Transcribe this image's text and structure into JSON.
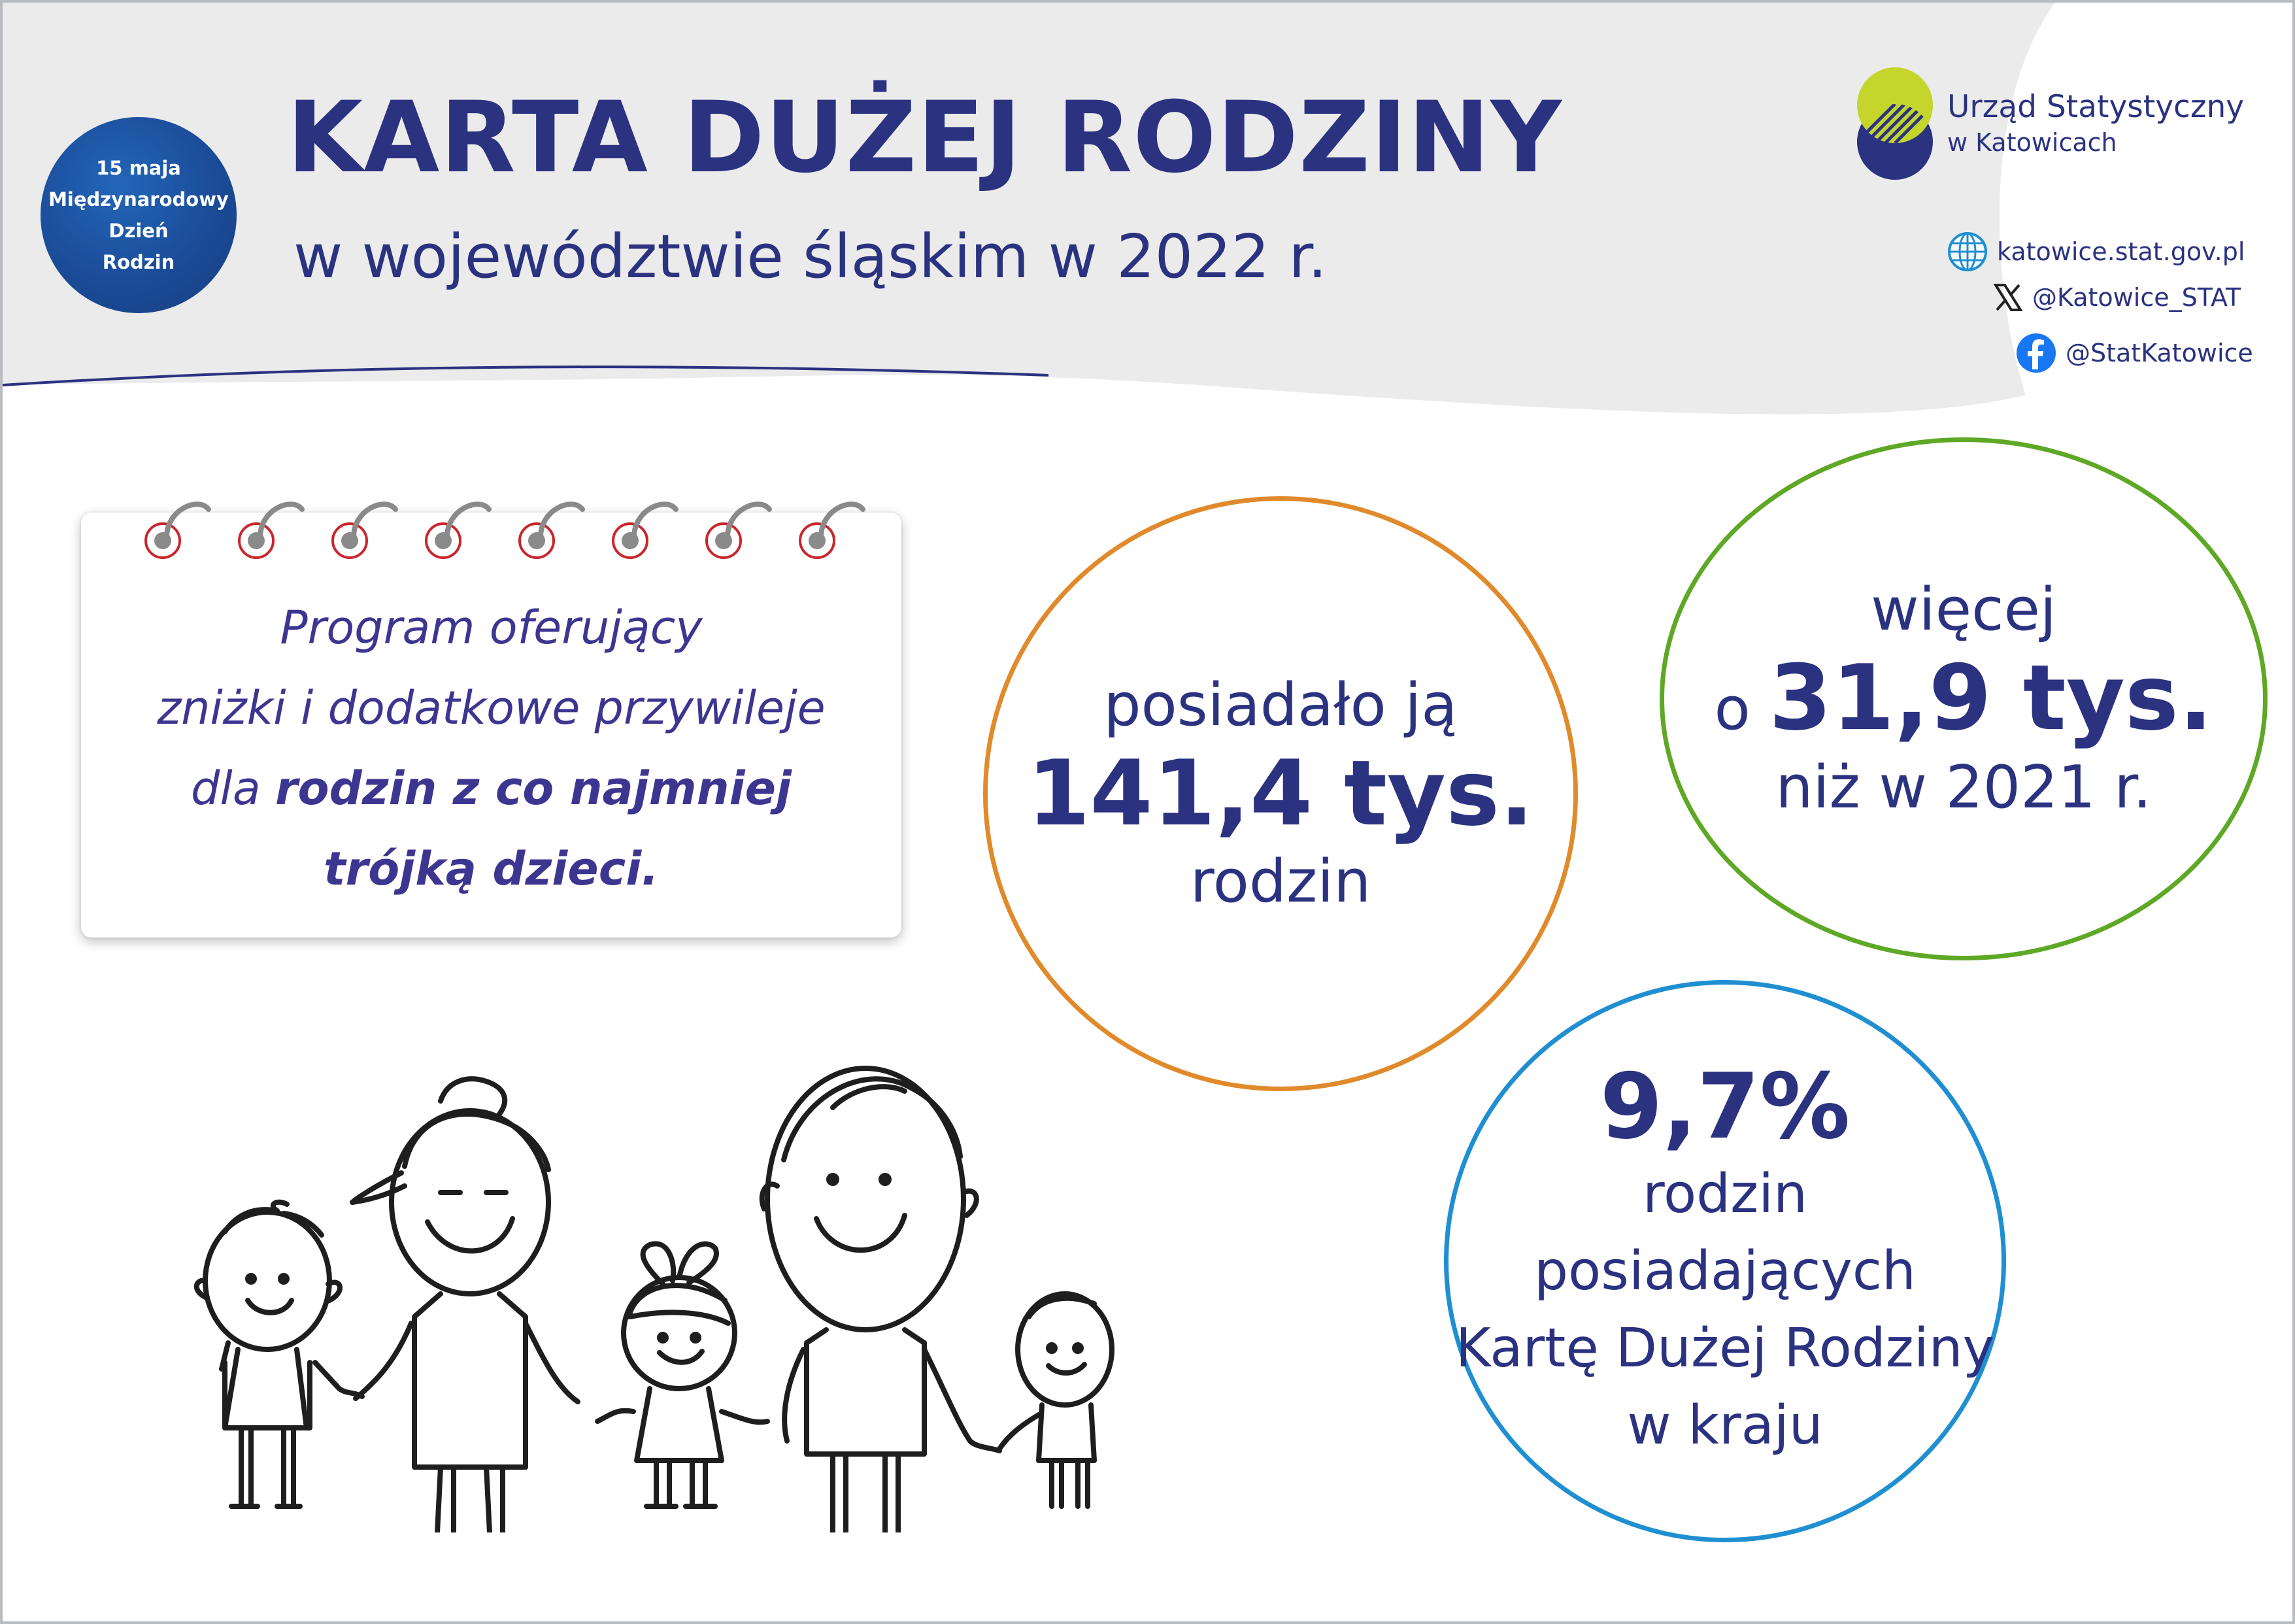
{
  "header": {
    "title": "KARTA DUŻEJ RODZINY",
    "subtitle": "w województwie śląskim w 2022 r."
  },
  "badge": {
    "lines": [
      "15 maja",
      "Międzynarodowy",
      "Dzień",
      "Rodzin"
    ]
  },
  "logo": {
    "line1": "Urząd Statystyczny",
    "line2": "w Katowicach",
    "colors": {
      "top": "#c4d52c",
      "bottom": "#2b3280"
    }
  },
  "contacts": [
    {
      "icon": "globe-icon",
      "text": "katowice.stat.gov.pl"
    },
    {
      "icon": "x-icon",
      "text": "@Katowice_STAT"
    },
    {
      "icon": "facebook-icon",
      "text": "@StatKatowice"
    }
  ],
  "note": {
    "line1": "Program oferujący",
    "line2": "zniżki i dodatkowe przywileje",
    "line3_prefix": "dla ",
    "line3_bold": "rodzin z co najmniej",
    "line4_bold": "trójką dzieci."
  },
  "stats": {
    "holders": {
      "line1": "posiadało ją",
      "value": "141,4 tys.",
      "line3": "rodzin",
      "color": "#e08a2b"
    },
    "change": {
      "line1": "więcej",
      "prefix": "o ",
      "value": "31,9 tys.",
      "line3": "niż w 2021 r.",
      "color": "#5ea826"
    },
    "share": {
      "value": "9,7%",
      "line2": "rodzin",
      "line3": "posiadających",
      "line4": "Kartę Dużej Rodziny",
      "line5": "w kraju",
      "color": "#1f8fd1"
    }
  },
  "colors": {
    "text": "#2b3280",
    "note_text": "#3d3691",
    "header_bg": "#ebebeb",
    "badge": "#1b4c99"
  }
}
